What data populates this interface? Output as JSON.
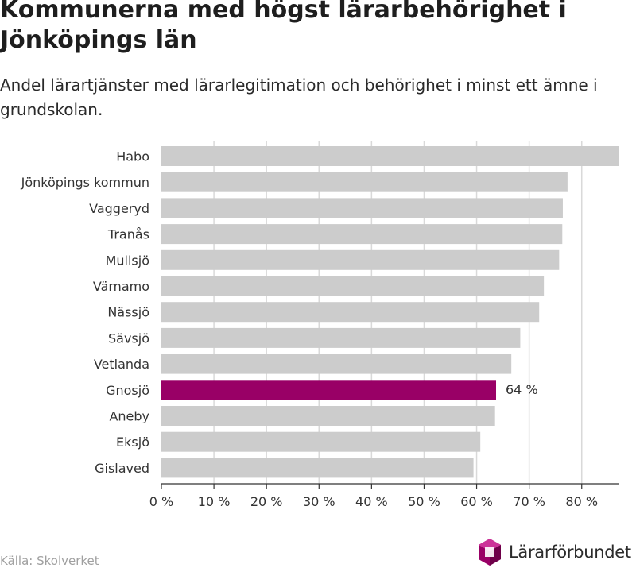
{
  "title": "Kommunerna med högst lärarbehörighet i Jönköpings län",
  "subtitle": "Andel lärartjänster med lärarlegitimation och behörighet i minst ett ämne i grundskolan.",
  "source": "Källa: Skolverket",
  "logo": {
    "name": "Lärarförbundet",
    "icon": "lararforbundet-logo-icon"
  },
  "colors": {
    "bar": "#cccccc",
    "highlight": "#990066",
    "grid": "#d9d9d9",
    "axis": "#333333"
  },
  "chart_data": {
    "type": "bar",
    "orientation": "horizontal",
    "categories": [
      "Habo",
      "Jönköpings kommun",
      "Vaggeryd",
      "Tranås",
      "Mullsjö",
      "Värnamo",
      "Nässjö",
      "Sävsjö",
      "Vetlanda",
      "Gnosjö",
      "Aneby",
      "Eksjö",
      "Gislaved"
    ],
    "values": [
      87,
      77.3,
      76.4,
      76.3,
      75.7,
      72.8,
      71.9,
      68.3,
      66.6,
      63.7,
      63.5,
      60.7,
      59.4
    ],
    "highlight": "Gnosjö",
    "data_labels": [
      {
        "category": "Gnosjö",
        "text": "64 %"
      }
    ],
    "xlim": [
      0,
      87
    ],
    "x_ticks": [
      0,
      10,
      20,
      30,
      40,
      50,
      60,
      70,
      80
    ],
    "x_tick_labels": [
      "0 %",
      "10 %",
      "20 %",
      "30 %",
      "40 %",
      "50 %",
      "60 %",
      "70 %",
      "80 %"
    ],
    "grid": true
  }
}
